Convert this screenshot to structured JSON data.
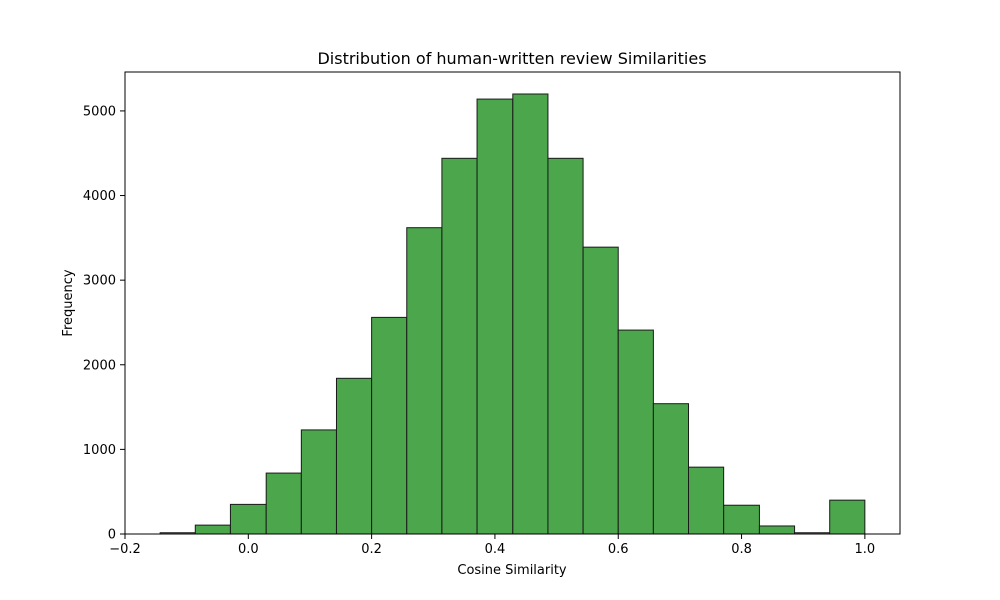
{
  "chart_data": {
    "type": "bar",
    "title": "Distribution of human-written review Similarities",
    "xlabel": "Cosine Similarity",
    "ylabel": "Frequency",
    "xlim": [
      -0.2,
      1.057
    ],
    "ylim": [
      0,
      5460
    ],
    "xticks": [
      -0.2,
      0.0,
      0.2,
      0.4,
      0.6,
      0.8,
      1.0
    ],
    "xtick_labels": [
      "−0.2",
      "0.0",
      "0.2",
      "0.4",
      "0.6",
      "0.8",
      "1.0"
    ],
    "yticks": [
      0,
      1000,
      2000,
      3000,
      4000,
      5000
    ],
    "ytick_labels": [
      "0",
      "1000",
      "2000",
      "3000",
      "4000",
      "5000"
    ],
    "bin_edges": [
      -0.143,
      -0.086,
      -0.029,
      0.029,
      0.086,
      0.143,
      0.2,
      0.257,
      0.314,
      0.371,
      0.429,
      0.486,
      0.543,
      0.6,
      0.657,
      0.714,
      0.771,
      0.829,
      0.886,
      0.943,
      1.0
    ],
    "values": [
      15,
      105,
      350,
      720,
      1230,
      1840,
      2560,
      3620,
      4440,
      5140,
      5200,
      4440,
      3390,
      2410,
      1540,
      790,
      340,
      95,
      15,
      400
    ],
    "bar_color": "#4ca64c",
    "edge_color": "#1a1a1a",
    "grid": false,
    "legend": "none"
  }
}
